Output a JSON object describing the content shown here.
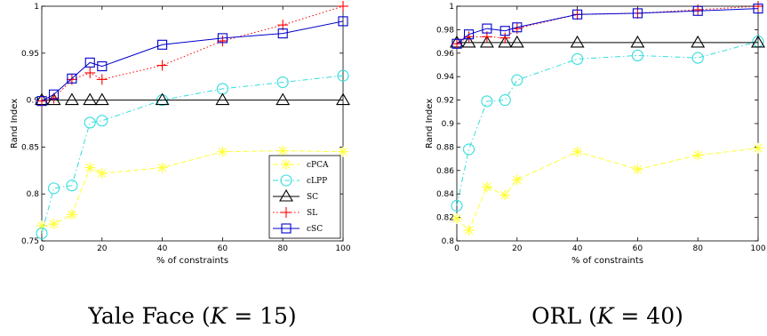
{
  "chart_data": [
    {
      "type": "line",
      "caption": {
        "name": "Yale Face (",
        "var": "K",
        "eq": " = 15)"
      },
      "xlabel": "% of constraints",
      "ylabel": "Rand Index",
      "xlim": [
        0,
        100
      ],
      "ylim": [
        0.75,
        1.0
      ],
      "xticks": [
        0,
        20,
        40,
        60,
        80,
        100
      ],
      "xtick_labels": [
        "0",
        "20",
        "40",
        "60",
        "80",
        "100"
      ],
      "yticks": [
        0.75,
        0.8,
        0.85,
        0.9,
        0.95,
        1.0
      ],
      "ytick_labels": [
        "0.75",
        "0.8",
        "0.85",
        "0.9",
        "0.95",
        "1"
      ],
      "grid": false,
      "legend": "bottom-right",
      "x": [
        0,
        4,
        10,
        16,
        20,
        40,
        60,
        80,
        100
      ],
      "series": [
        {
          "name": "cPCA",
          "color": "#ffff33",
          "marker": "star",
          "dash": "dashed",
          "values": [
            0.766,
            0.768,
            0.778,
            0.828,
            0.822,
            0.828,
            0.845,
            0.846,
            0.845
          ]
        },
        {
          "name": "cLPP",
          "color": "#33dddd",
          "marker": "circle",
          "dash": "dashdot",
          "values": [
            0.758,
            0.806,
            0.809,
            0.876,
            0.878,
            0.9,
            0.912,
            0.919,
            0.926
          ]
        },
        {
          "name": "SC",
          "color": "#000000",
          "marker": "triangle",
          "dash": "solid",
          "values": [
            0.9,
            0.9,
            0.9,
            0.9,
            0.9,
            0.9,
            0.9,
            0.9,
            0.9
          ]
        },
        {
          "name": "SL",
          "color": "#ff0000",
          "marker": "plus",
          "dash": "dotted",
          "values": [
            0.899,
            0.902,
            0.922,
            0.929,
            0.922,
            0.937,
            0.963,
            0.98,
            1.0
          ]
        },
        {
          "name": "cSC",
          "color": "#0000cc",
          "marker": "square",
          "dash": "solid",
          "values": [
            0.899,
            0.906,
            0.923,
            0.94,
            0.936,
            0.959,
            0.966,
            0.971,
            0.984
          ]
        }
      ]
    },
    {
      "type": "line",
      "caption": {
        "name": "ORL (",
        "var": "K",
        "eq": " = 40)"
      },
      "xlabel": "% of constraints",
      "ylabel": "Rand Index",
      "xlim": [
        0,
        100
      ],
      "ylim": [
        0.8,
        1.0
      ],
      "xticks": [
        0,
        20,
        40,
        60,
        80,
        100
      ],
      "xtick_labels": [
        "0",
        "20",
        "40",
        "60",
        "80",
        "100"
      ],
      "yticks": [
        0.8,
        0.82,
        0.84,
        0.86,
        0.88,
        0.9,
        0.92,
        0.94,
        0.96,
        0.98,
        1.0
      ],
      "ytick_labels": [
        "0.8",
        "0.82",
        "0.84",
        "0.86",
        "0.88",
        "0.9",
        "0.92",
        "0.94",
        "0.96",
        "0.98",
        "1"
      ],
      "grid": false,
      "legend": "none",
      "x": [
        0,
        4,
        10,
        16,
        20,
        40,
        60,
        80,
        100
      ],
      "series": [
        {
          "name": "cPCA",
          "color": "#ffff33",
          "marker": "star",
          "dash": "dashed",
          "values": [
            0.819,
            0.809,
            0.846,
            0.839,
            0.852,
            0.876,
            0.861,
            0.873,
            0.879
          ]
        },
        {
          "name": "cLPP",
          "color": "#33dddd",
          "marker": "circle",
          "dash": "dashdot",
          "values": [
            0.83,
            0.878,
            0.919,
            0.92,
            0.937,
            0.955,
            0.958,
            0.956,
            0.97
          ]
        },
        {
          "name": "SC",
          "color": "#000000",
          "marker": "triangle",
          "dash": "solid",
          "values": [
            0.969,
            0.969,
            0.969,
            0.969,
            0.969,
            0.969,
            0.969,
            0.969,
            0.969
          ]
        },
        {
          "name": "SL",
          "color": "#ff0000",
          "marker": "plus",
          "dash": "dotted",
          "values": [
            0.968,
            0.974,
            0.974,
            0.973,
            0.981,
            0.993,
            0.994,
            0.997,
            1.0
          ]
        },
        {
          "name": "cSC",
          "color": "#0000cc",
          "marker": "square",
          "dash": "solid",
          "values": [
            0.968,
            0.976,
            0.981,
            0.979,
            0.982,
            0.993,
            0.994,
            0.996,
            0.998
          ]
        }
      ]
    }
  ]
}
